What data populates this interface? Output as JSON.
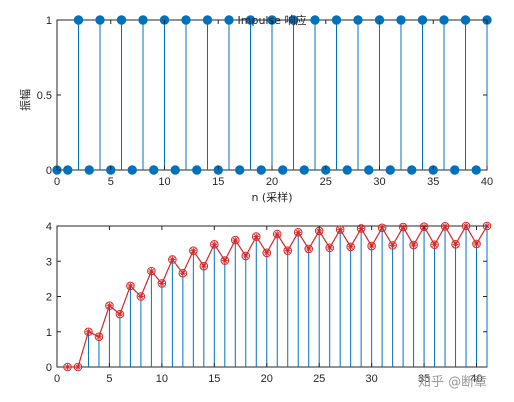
{
  "chart_data": [
    {
      "type": "stem",
      "title": "Impulse 响应",
      "xlabel": "n (采样)",
      "ylabel": "振幅",
      "xlim": [
        0,
        40
      ],
      "ylim": [
        0,
        1
      ],
      "xticks": [
        "0",
        "5",
        "10",
        "15",
        "20",
        "25",
        "30",
        "35",
        "40"
      ],
      "yticks": [
        "0",
        "0.5",
        "1"
      ],
      "grid": false,
      "x": [
        0,
        1,
        2,
        3,
        4,
        5,
        6,
        7,
        8,
        9,
        10,
        11,
        12,
        13,
        14,
        15,
        16,
        17,
        18,
        19,
        20,
        21,
        22,
        23,
        24,
        25,
        26,
        27,
        28,
        29,
        30,
        31,
        32,
        33,
        34,
        35,
        36,
        37,
        38,
        39,
        40
      ],
      "values": [
        0,
        0,
        1,
        0,
        1,
        0,
        1,
        0,
        1,
        0,
        1,
        0,
        1,
        0,
        1,
        0,
        1,
        0,
        1,
        0,
        1,
        0,
        1,
        0,
        1,
        0,
        1,
        0,
        1,
        0,
        1,
        0,
        1,
        0,
        1,
        0,
        1,
        0,
        1,
        0,
        1
      ],
      "stem_color": "#0072bd",
      "marker_color": "#0072bd"
    },
    {
      "type": "stem+line",
      "title": "",
      "xlabel": "",
      "ylabel": "",
      "xlim": [
        0,
        41
      ],
      "ylim": [
        0,
        4
      ],
      "xticks": [
        "0",
        "5",
        "10",
        "15",
        "20",
        "25",
        "30",
        "35",
        "40"
      ],
      "yticks": [
        "0",
        "1",
        "2",
        "3",
        "4"
      ],
      "grid": false,
      "x": [
        1,
        2,
        3,
        4,
        5,
        6,
        7,
        8,
        9,
        10,
        11,
        12,
        13,
        14,
        15,
        16,
        17,
        18,
        19,
        20,
        21,
        22,
        23,
        24,
        25,
        26,
        27,
        28,
        29,
        30,
        31,
        32,
        33,
        34,
        35,
        36,
        37,
        38,
        39,
        40,
        41
      ],
      "values": [
        0,
        0,
        1,
        0.86,
        1.74,
        1.5,
        2.3,
        2.0,
        2.72,
        2.37,
        3.05,
        2.66,
        3.3,
        2.86,
        3.48,
        3.02,
        3.6,
        3.15,
        3.7,
        3.24,
        3.77,
        3.3,
        3.82,
        3.35,
        3.86,
        3.38,
        3.9,
        3.41,
        3.93,
        3.43,
        3.95,
        3.45,
        3.97,
        3.46,
        3.98,
        3.47,
        3.99,
        3.48,
        4.0,
        3.49,
        4.0
      ],
      "stem_color": "#0072bd",
      "line_color": "#d62728",
      "marker": "circle-asterisk"
    }
  ],
  "watermark": "知乎 @断章"
}
